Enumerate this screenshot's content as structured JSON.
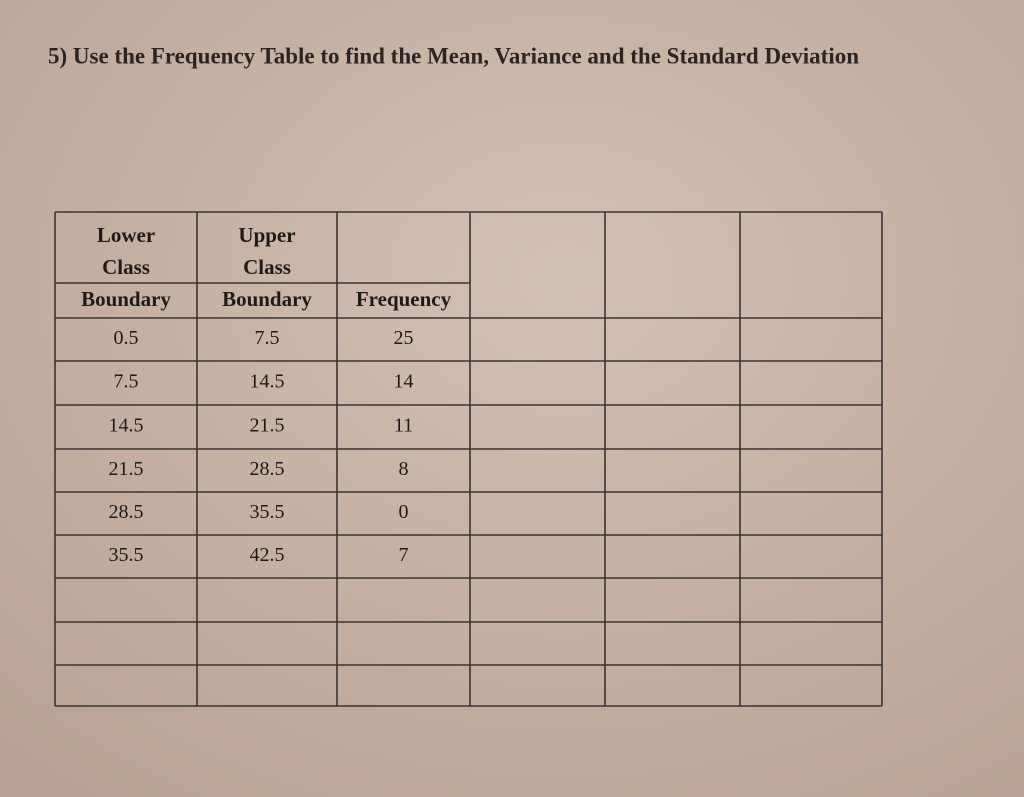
{
  "title": "5) Use the Frequency Table to find the Mean, Variance and the Standard Deviation",
  "table": {
    "header": [
      [
        "Lower",
        "Class",
        "Boundary"
      ],
      [
        "Upper",
        "Class",
        "Boundary"
      ],
      [
        "Frequency"
      ]
    ],
    "rows": [
      [
        0.5,
        7.5,
        25
      ],
      [
        7.5,
        14.5,
        14
      ],
      [
        14.5,
        21.5,
        11
      ],
      [
        21.5,
        28.5,
        8
      ],
      [
        28.5,
        35.5,
        0
      ],
      [
        35.5,
        42.5,
        7
      ]
    ]
  }
}
